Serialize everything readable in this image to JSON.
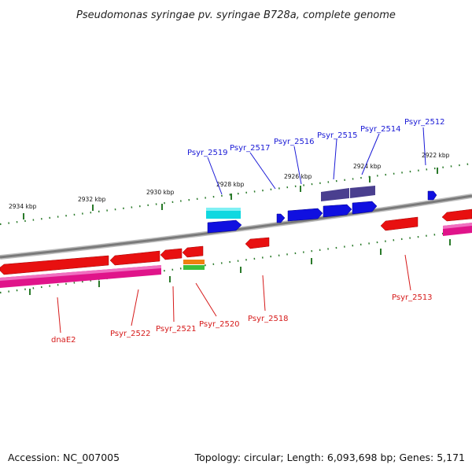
{
  "title": "Pseudomonas syringae pv. syringae B728a, complete genome",
  "footer": {
    "accession": "Accession: NC_007005",
    "summary": "Topology: circular; Length: 6,093,698 bp; Genes: 5,171"
  },
  "scale_labels": [
    "2934 kbp",
    "2932 kbp",
    "2930 kbp",
    "2928 kbp",
    "2926 kbp",
    "2924 kbp",
    "2922 kbp"
  ],
  "forward_gene_labels": [
    "Psyr_2519",
    "Psyr_2517",
    "Psyr_2516",
    "Psyr_2515",
    "Psyr_2514",
    "Psyr_2512"
  ],
  "reverse_gene_labels": [
    "dnaE2",
    "Psyr_2522",
    "Psyr_2521",
    "Psyr_2520",
    "Psyr_2518",
    "Psyr_2513"
  ],
  "colors": {
    "forward_label": "#1a1ad6",
    "reverse_label": "#d61a1a",
    "backbone": "#808080",
    "tick": "#2a7a2a",
    "forward_cds": "#1010e0",
    "reverse_cds": "#e01010",
    "forward_operon": "#4a3f8f",
    "reverse_operon": "#e0148a",
    "rna_cyan": "#10d8e0",
    "orange": "#f08010",
    "green": "#3cc03c"
  }
}
